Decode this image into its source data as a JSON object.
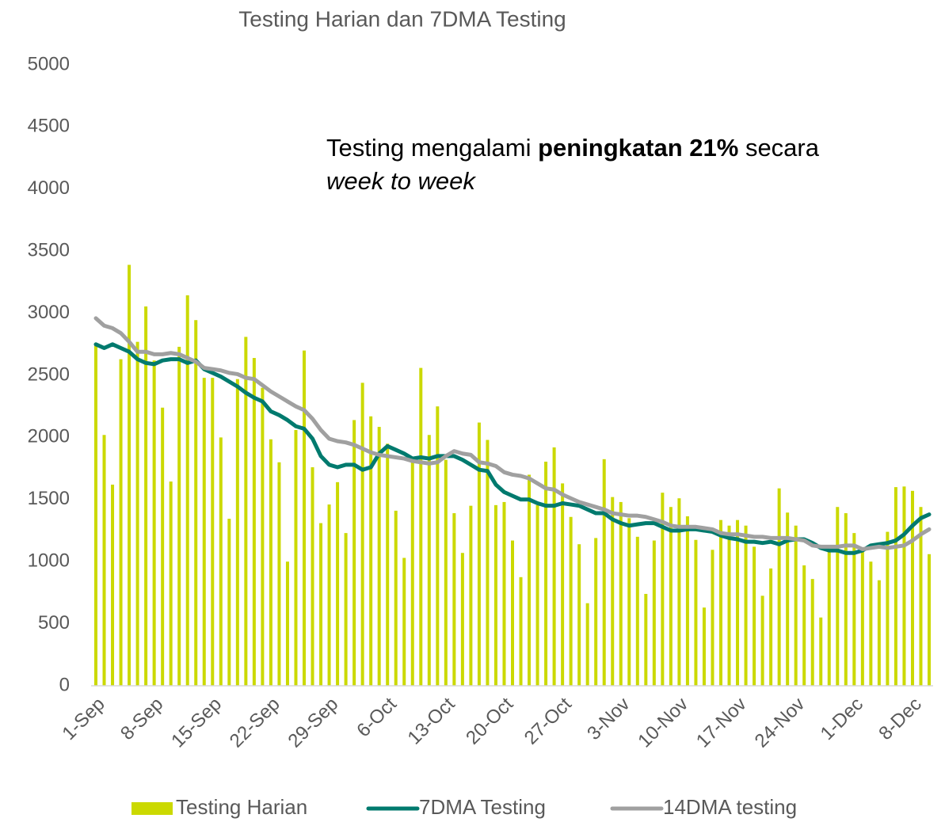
{
  "chart_data": {
    "type": "bar-line",
    "title": "Testing Harian dan 7DMA Testing",
    "annotation": [
      "Testing mengalami ",
      "peningkatan 21%",
      " secara",
      "week to week"
    ],
    "categories": [
      "1-Sep",
      null,
      null,
      null,
      null,
      null,
      null,
      "8-Sep",
      null,
      null,
      null,
      null,
      null,
      null,
      "15-Sep",
      null,
      null,
      null,
      null,
      null,
      null,
      "22-Sep",
      null,
      null,
      null,
      null,
      null,
      null,
      "29-Sep",
      null,
      null,
      null,
      null,
      null,
      null,
      "6-Oct",
      null,
      null,
      null,
      null,
      null,
      null,
      "13-Oct",
      null,
      null,
      null,
      null,
      null,
      null,
      "20-Oct",
      null,
      null,
      null,
      null,
      null,
      null,
      "27-Oct",
      null,
      null,
      null,
      null,
      null,
      null,
      "3-Nov",
      null,
      null,
      null,
      null,
      null,
      null,
      "10-Nov",
      null,
      null,
      null,
      null,
      null,
      null,
      "17-Nov",
      null,
      null,
      null,
      null,
      null,
      null,
      "24-Nov",
      null,
      null,
      null,
      null,
      null,
      null,
      "1-Dec",
      null,
      null,
      null,
      null,
      null,
      null,
      "8-Dec",
      null,
      null
    ],
    "series": [
      {
        "name": "Testing Harian",
        "kind": "bar",
        "color": "#cbd900",
        "values": [
          2750,
          2020,
          1620,
          2630,
          3390,
          2770,
          3055,
          2620,
          2240,
          1645,
          2730,
          3145,
          2945,
          2480,
          2480,
          2000,
          1345,
          2470,
          2810,
          2640,
          2400,
          1985,
          1800,
          1000,
          2060,
          2700,
          1760,
          1310,
          1460,
          1640,
          1230,
          2140,
          2440,
          2170,
          2085,
          1950,
          1410,
          1030,
          1800,
          2560,
          2020,
          2250,
          1820,
          1390,
          1070,
          1450,
          2120,
          1980,
          1455,
          1480,
          1170,
          875,
          1700,
          1455,
          1805,
          1920,
          1630,
          1360,
          1140,
          665,
          1190,
          1825,
          1520,
          1480,
          1350,
          1200,
          740,
          1170,
          1555,
          1440,
          1510,
          1365,
          1175,
          630,
          1095,
          1335,
          1290,
          1335,
          1290,
          1120,
          725,
          945,
          1590,
          1395,
          1290,
          970,
          860,
          550,
          1100,
          1440,
          1390,
          1230,
          1090,
          1000,
          850,
          1240,
          1600,
          1605,
          1570,
          1440,
          1060
        ]
      },
      {
        "name": "7DMA Testing",
        "kind": "line",
        "color": "#007a6e",
        "values": [
          2750,
          2720,
          2750,
          2720,
          2690,
          2630,
          2600,
          2590,
          2620,
          2630,
          2630,
          2600,
          2620,
          2550,
          2520,
          2490,
          2450,
          2410,
          2360,
          2320,
          2290,
          2210,
          2180,
          2140,
          2090,
          2070,
          1990,
          1850,
          1780,
          1760,
          1780,
          1780,
          1740,
          1760,
          1870,
          1930,
          1900,
          1870,
          1830,
          1840,
          1830,
          1850,
          1850,
          1850,
          1820,
          1780,
          1740,
          1730,
          1620,
          1560,
          1530,
          1500,
          1500,
          1470,
          1450,
          1450,
          1470,
          1460,
          1450,
          1420,
          1390,
          1390,
          1340,
          1310,
          1290,
          1300,
          1310,
          1310,
          1280,
          1250,
          1250,
          1260,
          1260,
          1250,
          1240,
          1210,
          1190,
          1180,
          1160,
          1160,
          1150,
          1160,
          1140,
          1170,
          1180,
          1180,
          1150,
          1110,
          1090,
          1090,
          1070,
          1070,
          1090,
          1130,
          1140,
          1150,
          1170,
          1220,
          1290,
          1350,
          1380
        ]
      },
      {
        "name": "14DMA testing",
        "kind": "line",
        "color": "#a0a0a0",
        "values": [
          2960,
          2900,
          2880,
          2840,
          2770,
          2690,
          2690,
          2670,
          2670,
          2680,
          2670,
          2640,
          2610,
          2560,
          2550,
          2540,
          2520,
          2510,
          2480,
          2470,
          2420,
          2370,
          2330,
          2290,
          2250,
          2220,
          2150,
          2060,
          1990,
          1970,
          1960,
          1940,
          1910,
          1880,
          1860,
          1850,
          1840,
          1830,
          1810,
          1800,
          1790,
          1800,
          1850,
          1890,
          1870,
          1860,
          1800,
          1790,
          1770,
          1720,
          1700,
          1690,
          1670,
          1630,
          1590,
          1580,
          1540,
          1510,
          1480,
          1460,
          1440,
          1420,
          1390,
          1380,
          1370,
          1370,
          1360,
          1340,
          1320,
          1290,
          1280,
          1280,
          1280,
          1270,
          1260,
          1230,
          1220,
          1220,
          1210,
          1200,
          1200,
          1190,
          1190,
          1190,
          1180,
          1170,
          1130,
          1120,
          1120,
          1120,
          1130,
          1130,
          1100,
          1110,
          1120,
          1110,
          1120,
          1130,
          1170,
          1220,
          1260
        ]
      }
    ],
    "ylim": [
      0,
      5000
    ],
    "yticks": [
      0,
      500,
      1000,
      1500,
      2000,
      2500,
      3000,
      3500,
      4000,
      4500,
      5000
    ],
    "grid": false,
    "legend": "bottom"
  }
}
